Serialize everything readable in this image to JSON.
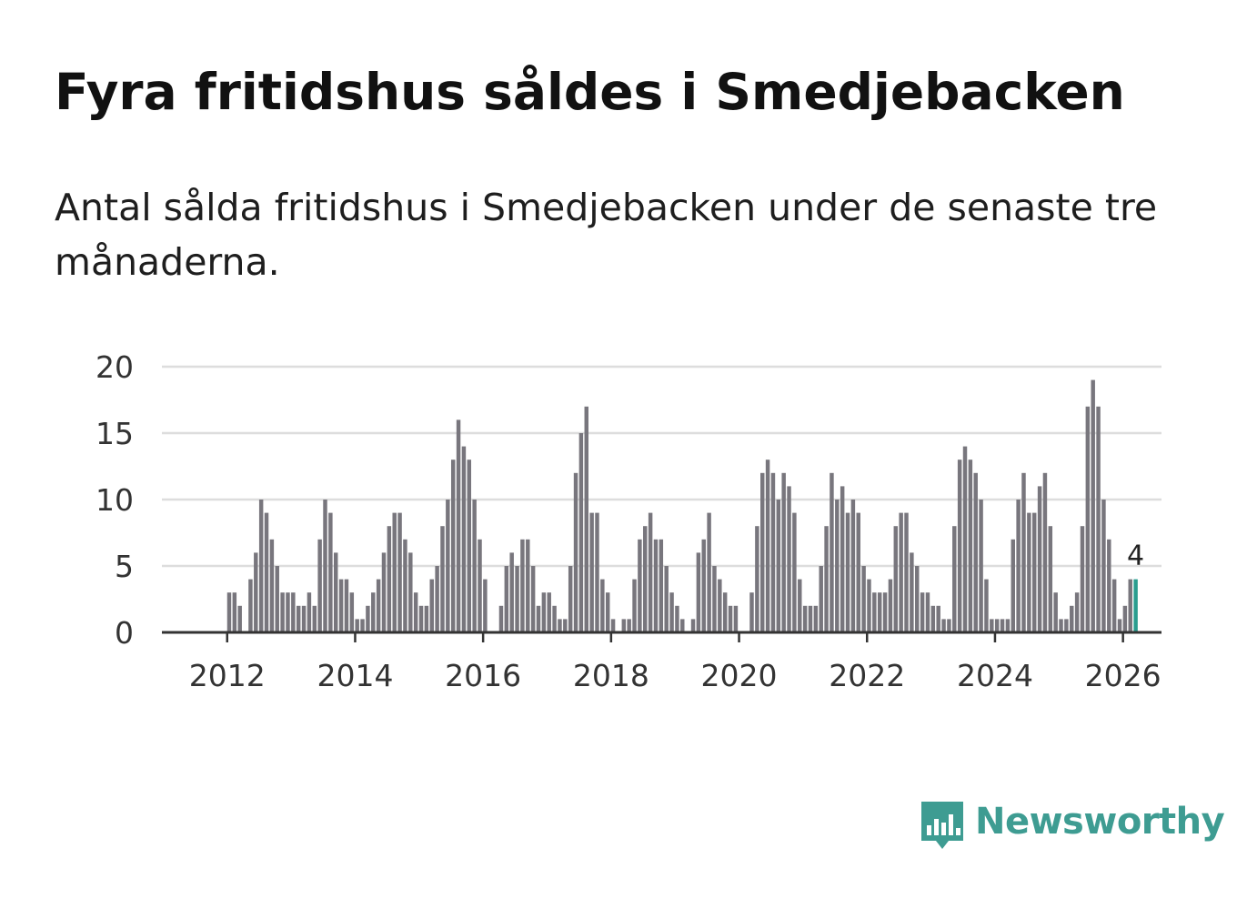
{
  "title": "Fyra fritidshus såldes i Smedjebacken",
  "subtitle": "Antal sålda fritidshus i Smedjebacken under de senaste tre månaderna.",
  "brand": {
    "name": "Newsworthy",
    "color": "#3e9c92",
    "icon": "bar-chart-speech-bubble-icon"
  },
  "colors": {
    "bar": "#78767d",
    "highlight": "#2a9d8f",
    "grid": "#dddddd",
    "axis": "#333333"
  },
  "chart_data": {
    "type": "bar",
    "title": "Fyra fritidshus såldes i Smedjebacken",
    "xlabel": "",
    "ylabel": "",
    "ylim": [
      0,
      20
    ],
    "yticks": [
      "0",
      "5",
      "10",
      "15",
      "20"
    ],
    "xticks": [
      "2012",
      "2014",
      "2016",
      "2018",
      "2020",
      "2022",
      "2024",
      "2026"
    ],
    "x_start": "2011-01",
    "first_year": 2011,
    "grid": true,
    "legend": "none",
    "values": [
      0,
      0,
      0,
      0,
      0,
      0,
      0,
      0,
      0,
      0,
      0,
      0,
      3,
      3,
      2,
      0,
      4,
      6,
      10,
      9,
      7,
      5,
      3,
      3,
      3,
      2,
      2,
      3,
      2,
      7,
      10,
      9,
      6,
      4,
      4,
      3,
      1,
      1,
      2,
      3,
      4,
      6,
      8,
      9,
      9,
      7,
      6,
      3,
      2,
      2,
      4,
      5,
      8,
      10,
      13,
      16,
      14,
      13,
      10,
      7,
      4,
      0,
      0,
      2,
      5,
      6,
      5,
      7,
      7,
      5,
      2,
      3,
      3,
      2,
      1,
      1,
      5,
      12,
      15,
      17,
      9,
      9,
      4,
      3,
      1,
      0,
      1,
      1,
      4,
      7,
      8,
      9,
      7,
      7,
      5,
      3,
      2,
      1,
      0,
      1,
      6,
      7,
      9,
      5,
      4,
      3,
      2,
      2,
      0,
      0,
      3,
      8,
      12,
      13,
      12,
      10,
      12,
      11,
      9,
      4,
      2,
      2,
      2,
      5,
      8,
      12,
      10,
      11,
      9,
      10,
      9,
      5,
      4,
      3,
      3,
      3,
      4,
      8,
      9,
      9,
      6,
      5,
      3,
      3,
      2,
      2,
      1,
      1,
      8,
      13,
      14,
      13,
      12,
      10,
      4,
      1,
      1,
      1,
      1,
      7,
      10,
      12,
      9,
      9,
      11,
      12,
      8,
      3,
      1,
      1,
      2,
      3,
      8,
      17,
      19,
      17,
      10,
      7,
      4,
      1,
      2,
      4,
      4
    ],
    "highlight": {
      "start_index": 182,
      "end_index": 182,
      "label": "4"
    }
  }
}
